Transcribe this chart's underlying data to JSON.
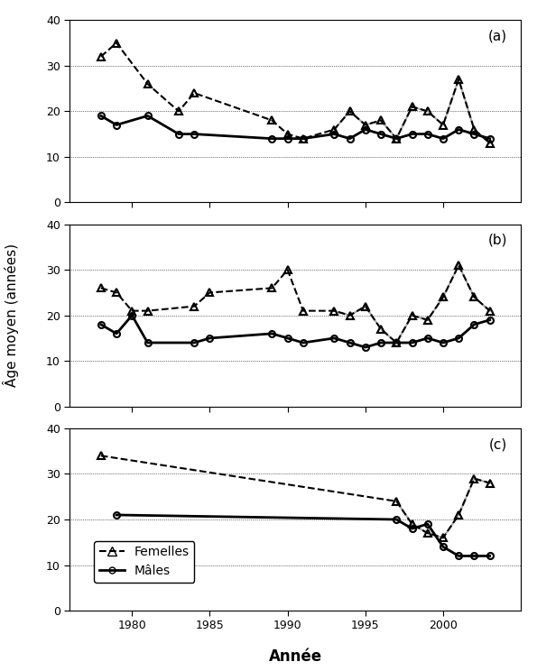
{
  "panel_a": {
    "label": "(a)",
    "femelles_years": [
      1978,
      1979,
      1981,
      1983,
      1984,
      1989,
      1990,
      1991,
      1993,
      1994,
      1995,
      1996,
      1997,
      1998,
      1999,
      2000,
      2001,
      2002,
      2003
    ],
    "femelles_values": [
      32,
      35,
      26,
      20,
      24,
      18,
      15,
      14,
      16,
      20,
      17,
      18,
      14,
      21,
      20,
      17,
      27,
      16,
      13
    ],
    "males_years": [
      1978,
      1979,
      1981,
      1983,
      1984,
      1989,
      1990,
      1991,
      1993,
      1994,
      1995,
      1996,
      1997,
      1998,
      1999,
      2000,
      2001,
      2002,
      2003
    ],
    "males_values": [
      19,
      17,
      19,
      15,
      15,
      14,
      14,
      14,
      15,
      14,
      16,
      15,
      14,
      15,
      15,
      14,
      16,
      15,
      14
    ],
    "femelles_gray_years": [
      1993,
      1994,
      1995,
      1996,
      1997,
      1998,
      1999,
      2000,
      2001,
      2002,
      2003
    ],
    "femelles_gray_values": [
      16,
      20,
      17,
      18,
      14,
      21,
      20,
      17,
      27,
      16,
      13
    ],
    "males_gray_years": [
      1993,
      1994,
      1995,
      1996,
      1997,
      1998,
      1999,
      2000,
      2001,
      2002,
      2003
    ],
    "males_gray_values": [
      15,
      14,
      16,
      15,
      14,
      15,
      15,
      14,
      16,
      15,
      14
    ]
  },
  "panel_b": {
    "label": "(b)",
    "femelles_years": [
      1978,
      1979,
      1980,
      1981,
      1984,
      1985,
      1989,
      1990,
      1991,
      1993,
      1994,
      1995,
      1996,
      1997,
      1998,
      1999,
      2000,
      2001,
      2002,
      2003
    ],
    "femelles_values": [
      26,
      25,
      21,
      21,
      22,
      25,
      26,
      30,
      21,
      21,
      20,
      22,
      17,
      14,
      20,
      19,
      24,
      31,
      24,
      21
    ],
    "males_years": [
      1978,
      1979,
      1980,
      1981,
      1984,
      1985,
      1989,
      1990,
      1991,
      1993,
      1994,
      1995,
      1996,
      1997,
      1998,
      1999,
      2000,
      2001,
      2002,
      2003
    ],
    "males_values": [
      18,
      16,
      20,
      14,
      14,
      15,
      16,
      15,
      14,
      15,
      14,
      13,
      14,
      14,
      14,
      15,
      14,
      15,
      18,
      19
    ],
    "femelles_gray_years": [
      1993,
      1994,
      1995,
      1996,
      1997,
      1998,
      1999,
      2000,
      2001,
      2002,
      2003
    ],
    "femelles_gray_values": [
      21,
      20,
      22,
      17,
      14,
      20,
      19,
      24,
      31,
      24,
      21
    ],
    "males_gray_years": [
      1993,
      1994,
      1995,
      1996,
      1997,
      1998,
      1999,
      2000,
      2001,
      2002,
      2003
    ],
    "males_gray_values": [
      15,
      14,
      13,
      14,
      14,
      14,
      15,
      14,
      15,
      18,
      19
    ]
  },
  "panel_c": {
    "label": "(c)",
    "femelles_years": [
      1978,
      1997,
      1998,
      1999,
      2000,
      2001,
      2002,
      2003
    ],
    "femelles_values": [
      34,
      24,
      19,
      17,
      16,
      21,
      29,
      28
    ],
    "males_years": [
      1979,
      1997,
      1998,
      1999,
      2000,
      2001,
      2002,
      2003
    ],
    "males_values": [
      21,
      20,
      18,
      19,
      14,
      12,
      12,
      12
    ],
    "femelles_gray_years": [
      1997,
      1998,
      1999,
      2000,
      2001,
      2002,
      2003
    ],
    "femelles_gray_values": [
      24,
      19,
      17,
      16,
      21,
      29,
      28
    ],
    "males_gray_years": [
      1997,
      1998,
      1999,
      2000,
      2001,
      2002,
      2003
    ],
    "males_gray_values": [
      20,
      18,
      19,
      14,
      12,
      12,
      12
    ]
  },
  "ylim": [
    0,
    40
  ],
  "yticks": [
    0,
    10,
    20,
    30,
    40
  ],
  "xlim": [
    1976,
    2005
  ],
  "xticks": [
    1980,
    1985,
    1990,
    1995,
    2000
  ],
  "ylabel": "Âge moyen (années)",
  "xlabel": "Année",
  "legend_femelles": "Femelles",
  "legend_males": "Mâles",
  "background_color": "#ffffff"
}
